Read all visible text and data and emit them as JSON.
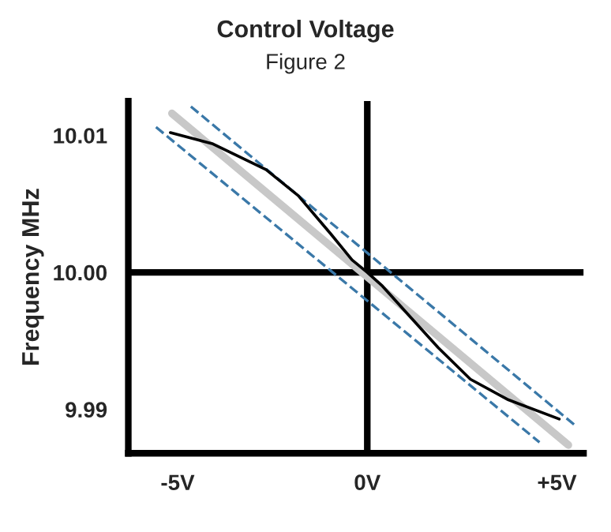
{
  "chart_data": {
    "type": "line",
    "title": "Control Voltage",
    "subtitle": "Figure 2",
    "ylabel": "Frequency MHz",
    "xlim": [
      -6.3,
      5.7
    ],
    "ylim": [
      9.9868,
      10.0125
    ],
    "xticks": [
      {
        "value": -5,
        "label": "-5V"
      },
      {
        "value": 0,
        "label": "0V"
      },
      {
        "value": 5,
        "label": "+5V"
      }
    ],
    "yticks": [
      {
        "value": 9.99,
        "label": "9.99"
      },
      {
        "value": 10.0,
        "label": "10.00"
      },
      10.01
    ],
    "grid": false,
    "legend": false,
    "ref_lines": [
      {
        "axis": "x",
        "value": 0,
        "color": "#000000"
      },
      {
        "axis": "y",
        "value": 10.0,
        "color": "#000000"
      }
    ],
    "series": [
      {
        "color": "#c8c8c8",
        "x": [
          -5.15,
          5.3
        ],
        "values": [
          10.0116,
          9.9874
        ],
        "line_style": "solid"
      },
      {
        "color": "#3a78a8",
        "x": [
          -4.65,
          5.45
        ],
        "values": [
          10.0121,
          9.9889
        ],
        "line_style": "dashed"
      },
      {
        "color": "#3a78a8",
        "x": [
          -5.57,
          4.54
        ],
        "values": [
          10.0106,
          9.9876
        ],
        "line_style": "dashed"
      },
      {
        "color": "#000000",
        "x": [
          -5.19,
          -4.09,
          -2.67,
          -1.82,
          -0.96,
          -0.4,
          0,
          0.4,
          1.02,
          1.87,
          2.72,
          3.72,
          5.06
        ],
        "values": [
          10.0102,
          10.0094,
          10.0075,
          10.0056,
          10.0028,
          10.0009,
          10.0,
          9.999,
          9.9971,
          9.9945,
          9.9922,
          9.9907,
          9.9893
        ],
        "line_style": "solid"
      }
    ]
  }
}
